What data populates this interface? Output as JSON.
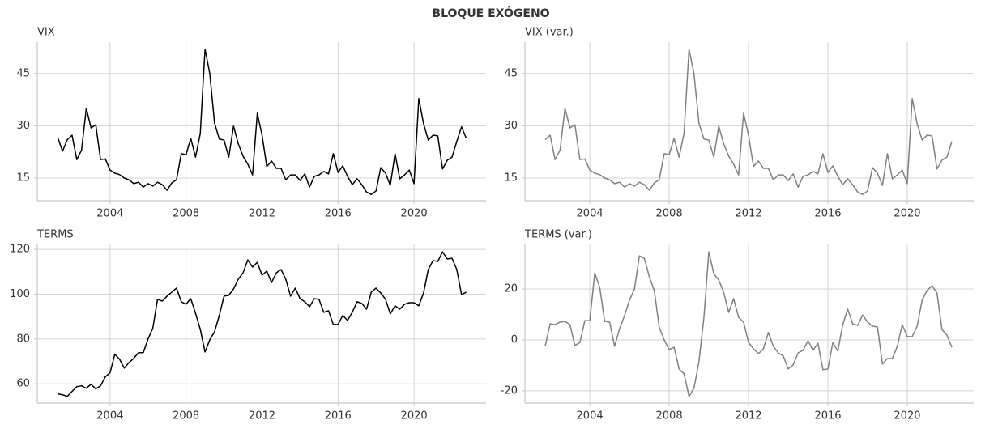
{
  "title": "BLOQUE EXÓGENO",
  "chart_data": [
    {
      "type": "line",
      "title": "VIX",
      "x": [
        2001.25,
        2001.5,
        2001.75,
        2002,
        2002.25,
        2002.5,
        2002.75,
        2003,
        2003.25,
        2003.5,
        2003.75,
        2004,
        2004.25,
        2004.5,
        2004.75,
        2005,
        2005.25,
        2005.5,
        2005.75,
        2006,
        2006.25,
        2006.5,
        2006.75,
        2007,
        2007.25,
        2007.5,
        2007.75,
        2008,
        2008.25,
        2008.5,
        2008.75,
        2009,
        2009.25,
        2009.5,
        2009.75,
        2010,
        2010.25,
        2010.5,
        2010.75,
        2011,
        2011.25,
        2011.5,
        2011.75,
        2012,
        2012.25,
        2012.5,
        2012.75,
        2013,
        2013.25,
        2013.5,
        2013.75,
        2014,
        2014.25,
        2014.5,
        2014.75,
        2015,
        2015.25,
        2015.5,
        2015.75,
        2016,
        2016.25,
        2016.5,
        2016.75,
        2017,
        2017.25,
        2017.5,
        2017.75,
        2018,
        2018.25,
        2018.5,
        2018.75,
        2019,
        2019.25,
        2019.5,
        2019.75,
        2020,
        2020.25,
        2020.5,
        2020.75,
        2021,
        2021.25,
        2021.5,
        2021.75,
        2022,
        2022.25,
        2022.5,
        2022.75
      ],
      "series": [
        {
          "color": "#000000",
          "values": [
            26.6,
            22.7,
            26,
            27.3,
            20.3,
            23,
            35,
            29.4,
            30.3,
            20.3,
            20.5,
            17.3,
            16.4,
            16,
            15,
            14.5,
            13.4,
            13.8,
            12.4,
            13.4,
            12.7,
            13.8,
            13.1,
            11.5,
            13.6,
            14.5,
            22,
            21.7,
            26.4,
            21,
            27.8,
            52,
            45,
            30.8,
            26.2,
            25.9,
            21,
            29.9,
            24.8,
            21.3,
            19,
            15.9,
            33.6,
            27.3,
            18.3,
            19.9,
            17.8,
            17.8,
            14.5,
            15.9,
            15.9,
            14.3,
            16.2,
            12.4,
            15.5,
            15.9,
            16.9,
            16.2,
            22,
            16.6,
            18.5,
            15.5,
            13.1,
            14.8,
            13.1,
            11,
            10.3,
            11.3,
            18,
            16.4,
            12.9,
            22,
            14.8,
            15.9,
            17.3,
            13.4,
            37.8,
            30.6,
            25.9,
            27.3,
            27.1,
            17.6,
            20.1,
            21,
            25.5,
            29.7,
            26.4
          ]
        }
      ],
      "xlim": [
        2000.17,
        2023.79
      ],
      "ylim": [
        8.5,
        54
      ],
      "xticks": [
        2004,
        2008,
        2012,
        2016,
        2020
      ],
      "yticks": [
        15,
        30,
        45
      ],
      "grid": true
    },
    {
      "type": "line",
      "title": "VIX (var.)",
      "x": [
        2001.75,
        2002,
        2002.25,
        2002.5,
        2002.75,
        2003,
        2003.25,
        2003.5,
        2003.75,
        2004,
        2004.25,
        2004.5,
        2004.75,
        2005,
        2005.25,
        2005.5,
        2005.75,
        2006,
        2006.25,
        2006.5,
        2006.75,
        2007,
        2007.25,
        2007.5,
        2007.75,
        2008,
        2008.25,
        2008.5,
        2008.75,
        2009,
        2009.25,
        2009.5,
        2009.75,
        2010,
        2010.25,
        2010.5,
        2010.75,
        2011,
        2011.25,
        2011.5,
        2011.75,
        2012,
        2012.25,
        2012.5,
        2012.75,
        2013,
        2013.25,
        2013.5,
        2013.75,
        2014,
        2014.25,
        2014.5,
        2014.75,
        2015,
        2015.25,
        2015.5,
        2015.75,
        2016,
        2016.25,
        2016.5,
        2016.75,
        2017,
        2017.25,
        2017.5,
        2017.75,
        2018,
        2018.25,
        2018.5,
        2018.75,
        2019,
        2019.25,
        2019.5,
        2019.75,
        2020,
        2020.25,
        2020.5,
        2020.75,
        2021,
        2021.25,
        2021.5,
        2021.75,
        2022,
        2022.25
      ],
      "series": [
        {
          "color": "#808080",
          "values": [
            26,
            27.3,
            20.3,
            23,
            35,
            29.4,
            30.3,
            20.3,
            20.5,
            17.3,
            16.4,
            16,
            15,
            14.5,
            13.4,
            13.8,
            12.4,
            13.4,
            12.7,
            13.8,
            13.1,
            11.5,
            13.6,
            14.5,
            22,
            21.7,
            26.4,
            21,
            27.8,
            52,
            45,
            30.8,
            26.2,
            25.9,
            21,
            29.9,
            24.8,
            21.3,
            19,
            15.9,
            33.6,
            27.3,
            18.3,
            19.9,
            17.8,
            17.8,
            14.5,
            15.9,
            15.9,
            14.3,
            16.2,
            12.4,
            15.5,
            15.9,
            16.9,
            16.2,
            22,
            16.6,
            18.5,
            15.5,
            13.1,
            14.8,
            13.1,
            11,
            10.3,
            11.3,
            18,
            16.4,
            12.9,
            22,
            14.8,
            15.9,
            17.3,
            13.4,
            37.8,
            30.6,
            25.9,
            27.3,
            27.1,
            17.6,
            20.1,
            21,
            25.5
          ]
        }
      ],
      "xlim": [
        2000.73,
        2023.35
      ],
      "ylim": [
        8.5,
        54
      ],
      "xticks": [
        2004,
        2008,
        2012,
        2016,
        2020
      ],
      "yticks": [
        15,
        30,
        45
      ],
      "grid": true
    },
    {
      "type": "line",
      "title": "TERMS",
      "x": [
        2001.25,
        2001.5,
        2001.75,
        2002,
        2002.25,
        2002.5,
        2002.75,
        2003,
        2003.25,
        2003.5,
        2003.75,
        2004,
        2004.25,
        2004.5,
        2004.75,
        2005,
        2005.25,
        2005.5,
        2005.75,
        2006,
        2006.25,
        2006.5,
        2006.75,
        2007,
        2007.25,
        2007.5,
        2007.75,
        2008,
        2008.25,
        2008.5,
        2008.75,
        2009,
        2009.25,
        2009.5,
        2009.75,
        2010,
        2010.25,
        2010.5,
        2010.75,
        2011,
        2011.25,
        2011.5,
        2011.75,
        2012,
        2012.25,
        2012.5,
        2012.75,
        2013,
        2013.25,
        2013.5,
        2013.75,
        2014,
        2014.25,
        2014.5,
        2014.75,
        2015,
        2015.25,
        2015.5,
        2015.75,
        2016,
        2016.25,
        2016.5,
        2016.75,
        2017,
        2017.25,
        2017.5,
        2017.75,
        2018,
        2018.25,
        2018.5,
        2018.75,
        2019,
        2019.25,
        2019.5,
        2019.75,
        2020,
        2020.25,
        2020.5,
        2020.75,
        2021,
        2021.25,
        2021.5,
        2021.75,
        2022,
        2022.25,
        2022.5,
        2022.75
      ],
      "series": [
        {
          "color": "#000000",
          "values": [
            55.5,
            55.1,
            54.4,
            56.6,
            58.7,
            59.1,
            58,
            59.8,
            57.7,
            59.1,
            63.1,
            64.9,
            73.2,
            71,
            67,
            69.5,
            71.4,
            73.9,
            73.9,
            80,
            84.7,
            97.7,
            96.9,
            99.1,
            100.9,
            102.7,
            96.6,
            95.5,
            98,
            91.5,
            84.3,
            74.2,
            79.6,
            83.2,
            90.5,
            99.1,
            99.5,
            102.3,
            106.7,
            109.5,
            115.3,
            112.1,
            114.2,
            108.5,
            110.3,
            105.2,
            109.5,
            111,
            106.7,
            99.1,
            102.7,
            98,
            96.6,
            94.4,
            98,
            97.7,
            91.9,
            92.6,
            86.5,
            86.5,
            90.5,
            88.3,
            91.9,
            96.6,
            95.9,
            93.3,
            100.9,
            102.7,
            100.5,
            97.7,
            91.2,
            94.8,
            93.3,
            95.5,
            96.2,
            96.2,
            94.8,
            100.5,
            111,
            115,
            114.6,
            118.9,
            115.7,
            116,
            111,
            99.8,
            100.9
          ]
        }
      ],
      "xlim": [
        2000.17,
        2023.79
      ],
      "ylim": [
        51.4,
        122.2
      ],
      "xticks": [
        2004,
        2008,
        2012,
        2016,
        2020
      ],
      "yticks": [
        60,
        80,
        100,
        120
      ],
      "grid": true
    },
    {
      "type": "line",
      "title": "TERMS (var.)",
      "x": [
        2001.75,
        2002,
        2002.25,
        2002.5,
        2002.75,
        2003,
        2003.25,
        2003.5,
        2003.75,
        2004,
        2004.25,
        2004.5,
        2004.75,
        2005,
        2005.25,
        2005.5,
        2005.75,
        2006,
        2006.25,
        2006.5,
        2006.75,
        2007,
        2007.25,
        2007.5,
        2007.75,
        2008,
        2008.25,
        2008.5,
        2008.75,
        2009,
        2009.25,
        2009.5,
        2009.75,
        2010,
        2010.25,
        2010.5,
        2010.75,
        2011,
        2011.25,
        2011.5,
        2011.75,
        2012,
        2012.25,
        2012.5,
        2012.75,
        2013,
        2013.25,
        2013.5,
        2013.75,
        2014,
        2014.25,
        2014.5,
        2014.75,
        2015,
        2015.25,
        2015.5,
        2015.75,
        2016,
        2016.25,
        2016.5,
        2016.75,
        2017,
        2017.25,
        2017.5,
        2017.75,
        2018,
        2018.25,
        2018.5,
        2018.75,
        2019,
        2019.25,
        2019.5,
        2019.75,
        2020,
        2020.25,
        2020.5,
        2020.75,
        2021,
        2021.25,
        2021.5,
        2021.75,
        2022,
        2022.25
      ],
      "series": [
        {
          "color": "#808080",
          "values": [
            -2.5,
            6.3,
            6,
            7,
            7.3,
            6,
            -2.2,
            -1,
            7.6,
            7.6,
            26.3,
            20.6,
            7.3,
            7,
            -2.5,
            4.4,
            9.5,
            15.6,
            20,
            33,
            32,
            24.8,
            19.4,
            5,
            0,
            -3.8,
            -2.9,
            -11.4,
            -13.3,
            -22.2,
            -19,
            -8.6,
            8.6,
            34.6,
            26,
            23.5,
            18.7,
            10.8,
            16.2,
            8.9,
            7,
            -1,
            -3.5,
            -5.4,
            -3.5,
            2.9,
            -2.5,
            -5.1,
            -6.3,
            -11.4,
            -9.8,
            -5.1,
            -4.1,
            -0.3,
            -4.1,
            -1.3,
            -11.7,
            -11.4,
            -1,
            -4.4,
            6,
            12.1,
            6.3,
            5.7,
            9.8,
            7,
            5.4,
            5.1,
            -9.5,
            -7.3,
            -7.3,
            -2.5,
            6,
            1.3,
            1.3,
            5.4,
            15.6,
            19.4,
            21.3,
            18.4,
            4.1,
            1.9,
            -2.9
          ]
        }
      ],
      "xlim": [
        2000.73,
        2023.35
      ],
      "ylim": [
        -24.8,
        37.5
      ],
      "xticks": [
        2004,
        2008,
        2012,
        2016,
        2020
      ],
      "yticks": [
        -20,
        0,
        20
      ],
      "grid": true
    }
  ]
}
